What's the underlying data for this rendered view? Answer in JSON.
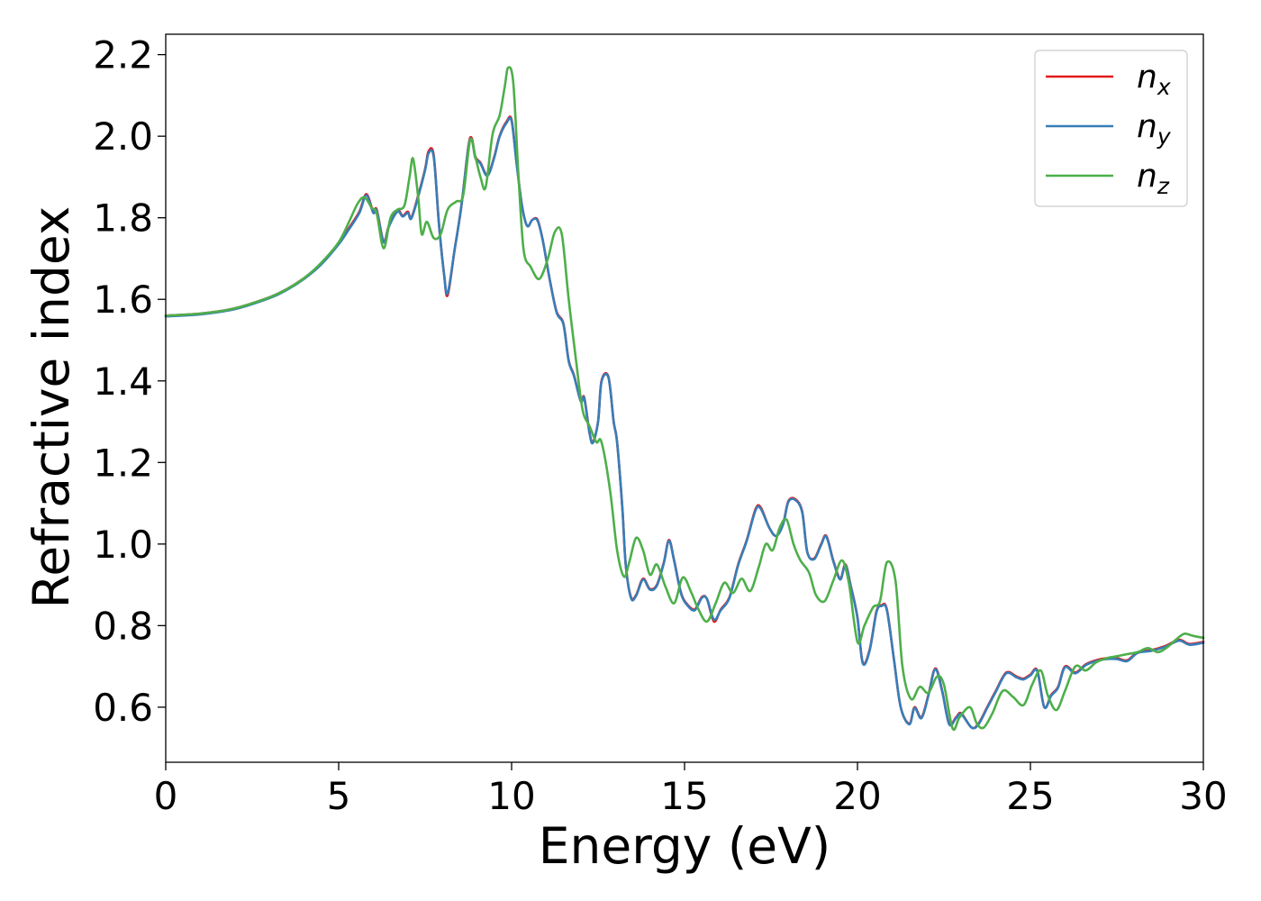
{
  "chart_data": {
    "type": "line",
    "title": "",
    "xlabel": "Energy (eV)",
    "ylabel": "Refractive index",
    "xlim": [
      0,
      30
    ],
    "ylim": [
      0.465,
      2.25
    ],
    "xticks": [
      0,
      5,
      10,
      15,
      20,
      25,
      30
    ],
    "xtick_labels": [
      "0",
      "5",
      "10",
      "15",
      "20",
      "25",
      "30"
    ],
    "yticks": [
      0.6,
      0.8,
      1.0,
      1.2,
      1.4,
      1.6,
      1.8,
      2.0,
      2.2
    ],
    "ytick_labels": [
      "0.6",
      "0.8",
      "1.0",
      "1.2",
      "1.4",
      "1.6",
      "1.8",
      "2.0",
      "2.2"
    ],
    "grid": false,
    "legend_position": "top-right",
    "series": [
      {
        "name": "n_x",
        "label_base": "n",
        "label_sub": "x",
        "color": "#e41a1c",
        "x": [
          0,
          1,
          2,
          3,
          3.5,
          4,
          4.5,
          5,
          5.3,
          5.6,
          5.8,
          6.0,
          6.1,
          6.3,
          6.45,
          6.7,
          6.85,
          7.0,
          7.1,
          7.3,
          7.5,
          7.6,
          7.75,
          7.9,
          8.05,
          8.15,
          8.35,
          8.55,
          8.75,
          8.85,
          8.95,
          9.1,
          9.3,
          9.5,
          9.65,
          9.85,
          10.0,
          10.15,
          10.3,
          10.45,
          10.6,
          10.75,
          10.9,
          11.1,
          11.3,
          11.5,
          11.65,
          11.8,
          12.0,
          12.1,
          12.25,
          12.35,
          12.5,
          12.6,
          12.8,
          12.95,
          13.05,
          13.2,
          13.3,
          13.45,
          13.6,
          13.8,
          14.0,
          14.2,
          14.4,
          14.55,
          14.7,
          14.9,
          15.1,
          15.3,
          15.5,
          15.65,
          15.85,
          16.05,
          16.3,
          16.55,
          16.8,
          17.05,
          17.2,
          17.45,
          17.65,
          17.85,
          18.0,
          18.2,
          18.4,
          18.55,
          18.75,
          18.95,
          19.1,
          19.3,
          19.5,
          19.65,
          19.8,
          20.0,
          20.15,
          20.35,
          20.55,
          20.7,
          20.85,
          21.05,
          21.25,
          21.5,
          21.65,
          21.85,
          22.05,
          22.25,
          22.45,
          22.65,
          22.85,
          23.0,
          23.3,
          23.5,
          23.75,
          24.0,
          24.3,
          24.6,
          24.8,
          25.0,
          25.2,
          25.4,
          25.6,
          25.8,
          26.0,
          26.3,
          26.6,
          26.9,
          27.2,
          27.5,
          27.8,
          28.1,
          28.5,
          28.9,
          29.3,
          29.6,
          30.0
        ],
        "y": [
          1.56,
          1.565,
          1.578,
          1.605,
          1.625,
          1.652,
          1.688,
          1.737,
          1.775,
          1.815,
          1.858,
          1.815,
          1.82,
          1.742,
          1.78,
          1.818,
          1.805,
          1.815,
          1.8,
          1.855,
          1.92,
          1.963,
          1.952,
          1.785,
          1.66,
          1.61,
          1.72,
          1.83,
          1.975,
          1.995,
          1.95,
          1.935,
          1.905,
          1.95,
          2.0,
          2.035,
          2.04,
          1.93,
          1.83,
          1.78,
          1.795,
          1.795,
          1.745,
          1.65,
          1.57,
          1.54,
          1.45,
          1.415,
          1.35,
          1.36,
          1.275,
          1.25,
          1.3,
          1.4,
          1.41,
          1.3,
          1.25,
          1.09,
          0.95,
          0.87,
          0.875,
          0.915,
          0.89,
          0.9,
          0.955,
          1.01,
          0.96,
          0.88,
          0.85,
          0.84,
          0.87,
          0.865,
          0.81,
          0.84,
          0.87,
          0.95,
          1.01,
          1.085,
          1.09,
          1.04,
          1.02,
          1.05,
          1.105,
          1.11,
          1.08,
          0.98,
          0.965,
          1.0,
          1.02,
          0.96,
          0.915,
          0.95,
          0.9,
          0.82,
          0.71,
          0.74,
          0.835,
          0.85,
          0.84,
          0.72,
          0.6,
          0.56,
          0.6,
          0.575,
          0.63,
          0.695,
          0.64,
          0.56,
          0.575,
          0.585,
          0.55,
          0.56,
          0.6,
          0.64,
          0.685,
          0.675,
          0.67,
          0.68,
          0.69,
          0.6,
          0.63,
          0.65,
          0.7,
          0.685,
          0.705,
          0.715,
          0.72,
          0.72,
          0.715,
          0.735,
          0.74,
          0.75,
          0.765,
          0.755,
          0.76
        ]
      },
      {
        "name": "n_y",
        "label_base": "n",
        "label_sub": "y",
        "color": "#377eb8",
        "x": [
          0,
          1,
          2,
          3,
          3.5,
          4,
          4.5,
          5,
          5.3,
          5.6,
          5.8,
          6.0,
          6.1,
          6.3,
          6.45,
          6.7,
          6.85,
          7.0,
          7.1,
          7.3,
          7.5,
          7.6,
          7.75,
          7.9,
          8.05,
          8.15,
          8.35,
          8.55,
          8.75,
          8.85,
          8.95,
          9.1,
          9.3,
          9.5,
          9.65,
          9.85,
          10.0,
          10.15,
          10.3,
          10.45,
          10.6,
          10.75,
          10.9,
          11.1,
          11.3,
          11.5,
          11.65,
          11.8,
          12.0,
          12.1,
          12.25,
          12.35,
          12.5,
          12.6,
          12.8,
          12.95,
          13.05,
          13.2,
          13.3,
          13.45,
          13.6,
          13.8,
          14.0,
          14.2,
          14.4,
          14.55,
          14.7,
          14.9,
          15.1,
          15.3,
          15.5,
          15.65,
          15.85,
          16.05,
          16.3,
          16.55,
          16.8,
          17.05,
          17.2,
          17.45,
          17.65,
          17.85,
          18.0,
          18.2,
          18.4,
          18.55,
          18.75,
          18.95,
          19.1,
          19.3,
          19.5,
          19.65,
          19.8,
          20.0,
          20.15,
          20.35,
          20.55,
          20.7,
          20.85,
          21.05,
          21.25,
          21.5,
          21.65,
          21.85,
          22.05,
          22.25,
          22.45,
          22.65,
          22.85,
          23.0,
          23.3,
          23.5,
          23.75,
          24.0,
          24.3,
          24.6,
          24.8,
          25.0,
          25.2,
          25.4,
          25.6,
          25.8,
          26.0,
          26.3,
          26.6,
          26.9,
          27.2,
          27.5,
          27.8,
          28.1,
          28.5,
          28.9,
          29.3,
          29.6,
          30.0
        ],
        "y": [
          1.558,
          1.563,
          1.576,
          1.603,
          1.623,
          1.65,
          1.686,
          1.735,
          1.772,
          1.812,
          1.855,
          1.812,
          1.817,
          1.74,
          1.778,
          1.815,
          1.803,
          1.812,
          1.798,
          1.852,
          1.917,
          1.958,
          1.948,
          1.782,
          1.66,
          1.615,
          1.72,
          1.83,
          1.972,
          1.992,
          1.947,
          1.933,
          1.903,
          1.948,
          1.998,
          2.032,
          2.037,
          1.928,
          1.83,
          1.78,
          1.795,
          1.793,
          1.745,
          1.65,
          1.568,
          1.538,
          1.448,
          1.413,
          1.35,
          1.358,
          1.273,
          1.248,
          1.3,
          1.398,
          1.408,
          1.3,
          1.25,
          1.09,
          0.95,
          0.868,
          0.873,
          0.913,
          0.888,
          0.898,
          0.953,
          1.008,
          0.958,
          0.878,
          0.848,
          0.838,
          0.868,
          0.865,
          0.815,
          0.838,
          0.868,
          0.948,
          1.008,
          1.082,
          1.087,
          1.04,
          1.02,
          1.048,
          1.103,
          1.108,
          1.078,
          0.98,
          0.963,
          0.998,
          1.018,
          0.958,
          0.913,
          0.948,
          0.898,
          0.818,
          0.708,
          0.738,
          0.833,
          0.848,
          0.838,
          0.72,
          0.6,
          0.558,
          0.598,
          0.573,
          0.628,
          0.693,
          0.638,
          0.558,
          0.573,
          0.583,
          0.55,
          0.558,
          0.598,
          0.638,
          0.683,
          0.673,
          0.668,
          0.678,
          0.688,
          0.6,
          0.628,
          0.648,
          0.698,
          0.683,
          0.703,
          0.713,
          0.718,
          0.718,
          0.713,
          0.733,
          0.738,
          0.748,
          0.763,
          0.753,
          0.758
        ]
      },
      {
        "name": "n_z",
        "label_base": "n",
        "label_sub": "z",
        "color": "#4daf4a",
        "x": [
          0,
          1,
          2,
          3,
          3.5,
          4,
          4.5,
          5,
          5.3,
          5.55,
          5.75,
          5.95,
          6.1,
          6.3,
          6.5,
          6.7,
          6.9,
          7.05,
          7.15,
          7.3,
          7.4,
          7.55,
          7.75,
          7.95,
          8.15,
          8.4,
          8.6,
          8.8,
          8.95,
          9.1,
          9.25,
          9.45,
          9.65,
          9.8,
          9.9,
          10.05,
          10.2,
          10.35,
          10.55,
          10.8,
          11.05,
          11.25,
          11.45,
          11.65,
          11.85,
          12.05,
          12.25,
          12.45,
          12.6,
          12.85,
          13.05,
          13.25,
          13.4,
          13.6,
          13.8,
          14.0,
          14.2,
          14.45,
          14.7,
          14.95,
          15.2,
          15.4,
          15.65,
          15.9,
          16.15,
          16.4,
          16.65,
          16.9,
          17.15,
          17.35,
          17.55,
          17.75,
          17.95,
          18.15,
          18.35,
          18.6,
          18.8,
          19.05,
          19.3,
          19.55,
          19.75,
          20.0,
          20.2,
          20.45,
          20.65,
          20.85,
          21.1,
          21.3,
          21.55,
          21.8,
          22.05,
          22.3,
          22.5,
          22.75,
          22.95,
          23.25,
          23.45,
          23.65,
          23.9,
          24.2,
          24.5,
          24.8,
          25.05,
          25.3,
          25.5,
          25.75,
          26.0,
          26.3,
          26.6,
          26.9,
          27.2,
          27.5,
          27.8,
          28.1,
          28.4,
          28.7,
          29.0,
          29.2,
          29.45,
          29.7,
          30.0
        ],
        "y": [
          1.56,
          1.565,
          1.578,
          1.605,
          1.625,
          1.652,
          1.69,
          1.74,
          1.79,
          1.835,
          1.85,
          1.825,
          1.81,
          1.725,
          1.8,
          1.82,
          1.83,
          1.9,
          1.945,
          1.85,
          1.76,
          1.79,
          1.75,
          1.76,
          1.82,
          1.84,
          1.855,
          1.99,
          1.95,
          1.9,
          1.875,
          2.005,
          2.05,
          2.12,
          2.168,
          2.13,
          1.9,
          1.72,
          1.68,
          1.65,
          1.7,
          1.765,
          1.76,
          1.6,
          1.46,
          1.33,
          1.29,
          1.25,
          1.25,
          1.13,
          0.985,
          0.92,
          0.955,
          1.015,
          0.985,
          0.925,
          0.95,
          0.895,
          0.855,
          0.918,
          0.88,
          0.84,
          0.81,
          0.855,
          0.905,
          0.88,
          0.915,
          0.885,
          0.945,
          1.0,
          0.985,
          1.04,
          1.06,
          1.0,
          0.96,
          0.93,
          0.875,
          0.86,
          0.91,
          0.96,
          0.905,
          0.76,
          0.8,
          0.845,
          0.86,
          0.955,
          0.91,
          0.7,
          0.62,
          0.65,
          0.635,
          0.675,
          0.655,
          0.548,
          0.575,
          0.6,
          0.56,
          0.55,
          0.585,
          0.64,
          0.625,
          0.605,
          0.655,
          0.69,
          0.63,
          0.593,
          0.64,
          0.7,
          0.69,
          0.71,
          0.72,
          0.725,
          0.73,
          0.735,
          0.745,
          0.735,
          0.75,
          0.765,
          0.78,
          0.775,
          0.77
        ]
      }
    ]
  }
}
